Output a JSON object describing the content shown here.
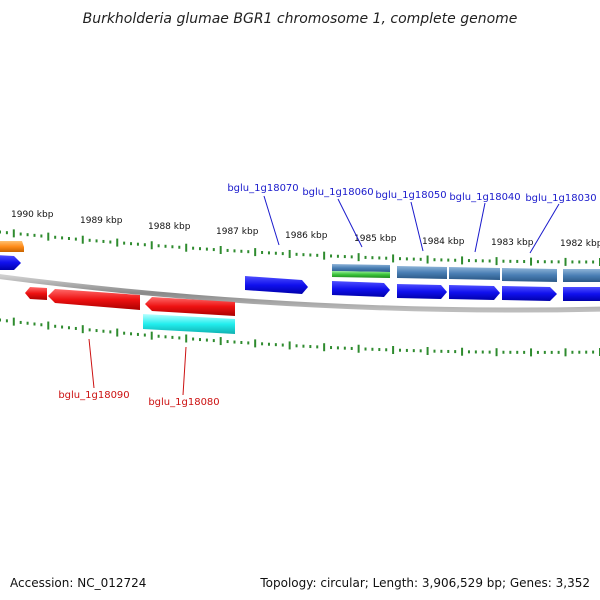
{
  "title": "Burkholderia glumae BGR1 chromosome 1, complete genome",
  "footer": {
    "accession": "Accession: NC_012724",
    "topology": "Topology: circular; Length: 3,906,529 bp; Genes: 3,352"
  },
  "colors": {
    "backbone": "#999999",
    "tick": "#2e8b2e",
    "label_forward": "#1a1acc",
    "label_reverse": "#cc1111",
    "blue": "#1010ee",
    "steel": "#4a7fb5",
    "green": "#3cc43c",
    "red": "#ee1111",
    "cyan": "#22eeee",
    "orange": "#ff8c1a"
  },
  "scale_labels": [
    {
      "id": "1990",
      "text": "1990 kbp"
    },
    {
      "id": "1989",
      "text": "1989 kbp"
    },
    {
      "id": "1988",
      "text": "1988 kbp"
    },
    {
      "id": "1987",
      "text": "1987 kbp"
    },
    {
      "id": "1986",
      "text": "1986 kbp"
    },
    {
      "id": "1985",
      "text": "1985 kbp"
    },
    {
      "id": "1984",
      "text": "1984 kbp"
    },
    {
      "id": "1983",
      "text": "1983 kbp"
    },
    {
      "id": "1982",
      "text": "1982 kbp"
    }
  ],
  "gene_labels": [
    {
      "id": "18070",
      "text": "bglu_1g18070",
      "strand": "forward"
    },
    {
      "id": "18060",
      "text": "bglu_1g18060",
      "strand": "forward"
    },
    {
      "id": "18050",
      "text": "bglu_1g18050",
      "strand": "forward"
    },
    {
      "id": "18040",
      "text": "bglu_1g18040",
      "strand": "forward"
    },
    {
      "id": "18030",
      "text": "bglu_1g18030",
      "strand": "forward"
    },
    {
      "id": "18090",
      "text": "bglu_1g18090",
      "strand": "reverse"
    },
    {
      "id": "18080",
      "text": "bglu_1g18080",
      "strand": "reverse"
    }
  ]
}
